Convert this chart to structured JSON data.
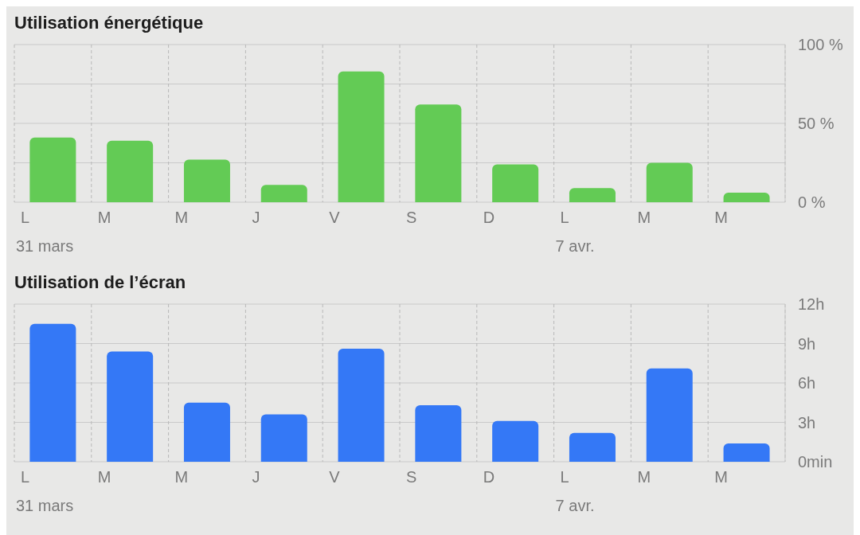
{
  "chart_data": [
    {
      "type": "bar",
      "title": "Utilisation énergétique",
      "categories": [
        "L",
        "M",
        "M",
        "J",
        "V",
        "S",
        "D",
        "L",
        "M",
        "M"
      ],
      "values": [
        41,
        39,
        27,
        11,
        83,
        62,
        24,
        9,
        25,
        6
      ],
      "color": "#63cb55",
      "ylim": [
        0,
        100
      ],
      "yticks": [
        {
          "value": 0,
          "label": "0 %"
        },
        {
          "value": 25,
          "label": null
        },
        {
          "value": 50,
          "label": "50 %"
        },
        {
          "value": 75,
          "label": null
        },
        {
          "value": 100,
          "label": "100 %"
        }
      ],
      "grid": true,
      "annotations": [
        "31 mars",
        "7 avr."
      ]
    },
    {
      "type": "bar",
      "title": "Utilisation de l’écran",
      "categories": [
        "L",
        "M",
        "M",
        "J",
        "V",
        "S",
        "D",
        "L",
        "M",
        "M"
      ],
      "values": [
        10.5,
        8.4,
        4.5,
        3.6,
        8.6,
        4.3,
        3.1,
        2.2,
        7.1,
        1.4
      ],
      "color": "#3478f6",
      "ylim": [
        0,
        12
      ],
      "yticks": [
        {
          "value": 0,
          "label": "0min"
        },
        {
          "value": 3,
          "label": "3h"
        },
        {
          "value": 6,
          "label": "6h"
        },
        {
          "value": 9,
          "label": "9h"
        },
        {
          "value": 12,
          "label": "12h"
        }
      ],
      "grid": true,
      "annotations": [
        "31 mars",
        "7 avr."
      ]
    }
  ]
}
